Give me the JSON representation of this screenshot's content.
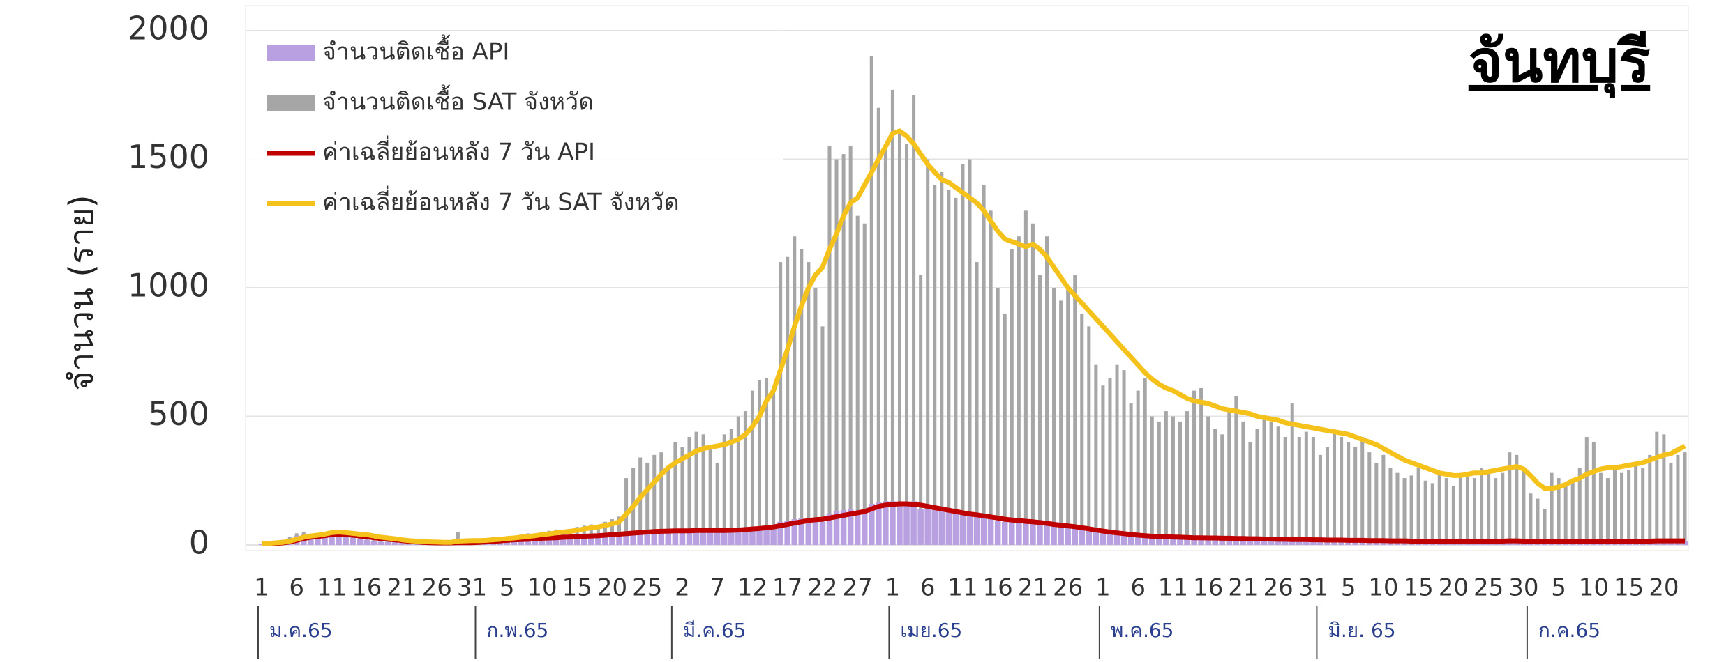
{
  "chart_data": {
    "type": "combo",
    "title": "จันทบุรี",
    "y_label": "จำนวน (ราย)",
    "ylim": [
      0,
      2000
    ],
    "yticks": [
      0,
      500,
      1000,
      1500,
      2000
    ],
    "grid": true,
    "legend": "upper left",
    "categories": [
      "1",
      null,
      null,
      null,
      null,
      "6",
      null,
      null,
      null,
      null,
      "11",
      null,
      null,
      null,
      null,
      "16",
      null,
      null,
      null,
      null,
      "21",
      null,
      null,
      null,
      null,
      "26",
      null,
      null,
      null,
      null,
      "31",
      null,
      null,
      null,
      null,
      "5",
      null,
      null,
      null,
      null,
      "10",
      null,
      null,
      null,
      null,
      "15",
      null,
      null,
      null,
      null,
      "20",
      null,
      null,
      null,
      null,
      "25",
      null,
      null,
      null,
      null,
      "2",
      null,
      null,
      null,
      null,
      "7",
      null,
      null,
      null,
      null,
      "12",
      null,
      null,
      null,
      null,
      "17",
      null,
      null,
      null,
      null,
      "22",
      null,
      null,
      null,
      null,
      "27",
      null,
      null,
      null,
      null,
      "1",
      null,
      null,
      null,
      null,
      "6",
      null,
      null,
      null,
      null,
      "11",
      null,
      null,
      null,
      null,
      "16",
      null,
      null,
      null,
      null,
      "21",
      null,
      null,
      null,
      null,
      "26",
      null,
      null,
      null,
      null,
      "1",
      null,
      null,
      null,
      null,
      "6",
      null,
      null,
      null,
      null,
      "11",
      null,
      null,
      null,
      null,
      "16",
      null,
      null,
      null,
      null,
      "21",
      null,
      null,
      null,
      null,
      "26",
      null,
      null,
      null,
      null,
      "31",
      null,
      null,
      null,
      null,
      "5",
      null,
      null,
      null,
      null,
      "10",
      null,
      null,
      null,
      null,
      "15",
      null,
      null,
      null,
      null,
      "20",
      null,
      null,
      null,
      null,
      "25",
      null,
      null,
      null,
      null,
      "30",
      null,
      null,
      null,
      null,
      "5",
      null,
      null,
      null,
      null,
      "10",
      null,
      null,
      null,
      null,
      "15",
      null,
      null,
      null,
      null,
      "20",
      null,
      null,
      null
    ],
    "x_groups": [
      {
        "label": "ม.ค.65",
        "span": 31
      },
      {
        "label": "ก.พ.65",
        "span": 28
      },
      {
        "label": "มี.ค.65",
        "span": 31
      },
      {
        "label": "เมย.65",
        "span": 30
      },
      {
        "label": "พ.ค.65",
        "span": 31
      },
      {
        "label": "มิ.ย. 65",
        "span": 30
      },
      {
        "label": "ก.ค.65",
        "span": 23
      }
    ],
    "series": [
      {
        "name": "จำนวนติดเชื้อ SAT จังหวัด",
        "type": "bar",
        "color": "#a6a6a6",
        "values": [
          5,
          8,
          10,
          20,
          30,
          45,
          50,
          40,
          35,
          45,
          55,
          50,
          40,
          35,
          30,
          25,
          20,
          15,
          15,
          12,
          10,
          10,
          8,
          10,
          12,
          8,
          10,
          10,
          50,
          15,
          10,
          20,
          25,
          30,
          25,
          30,
          35,
          40,
          45,
          40,
          50,
          55,
          60,
          50,
          60,
          70,
          75,
          80,
          70,
          90,
          100,
          110,
          260,
          300,
          340,
          320,
          350,
          360,
          300,
          400,
          380,
          420,
          440,
          430,
          380,
          320,
          430,
          450,
          500,
          520,
          600,
          640,
          650,
          600,
          1100,
          1120,
          1200,
          1150,
          1100,
          1000,
          850,
          1550,
          1500,
          1520,
          1550,
          1280,
          1250,
          1900,
          1700,
          1550,
          1770,
          1600,
          1560,
          1750,
          1050,
          1500,
          1400,
          1450,
          1380,
          1350,
          1480,
          1500,
          1100,
          1400,
          1300,
          1000,
          900,
          1150,
          1200,
          1300,
          1250,
          1050,
          1200,
          1000,
          950,
          1000,
          1050,
          900,
          850,
          700,
          620,
          650,
          700,
          680,
          550,
          600,
          650,
          500,
          480,
          520,
          500,
          480,
          520,
          600,
          610,
          500,
          450,
          430,
          520,
          580,
          480,
          400,
          450,
          500,
          480,
          460,
          420,
          550,
          420,
          440,
          420,
          350,
          380,
          440,
          420,
          400,
          380,
          420,
          360,
          320,
          350,
          300,
          280,
          260,
          270,
          300,
          250,
          240,
          280,
          260,
          230,
          280,
          270,
          260,
          300,
          290,
          260,
          280,
          360,
          350,
          300,
          200,
          180,
          140,
          280,
          260,
          240,
          250,
          300,
          420,
          400,
          280,
          260,
          300,
          280,
          290,
          320,
          300,
          350,
          440,
          430,
          320,
          350,
          360
        ]
      },
      {
        "name": "จำนวนติดเชื้อ API",
        "type": "bar",
        "color": "#b9a0e0",
        "values": [
          4,
          6,
          8,
          16,
          24,
          36,
          40,
          32,
          28,
          36,
          44,
          40,
          32,
          28,
          24,
          20,
          16,
          12,
          12,
          10,
          8,
          8,
          6,
          8,
          10,
          6,
          8,
          8,
          10,
          12,
          8,
          15,
          18,
          20,
          18,
          20,
          22,
          25,
          28,
          25,
          30,
          32,
          35,
          30,
          32,
          35,
          38,
          40,
          35,
          42,
          45,
          48,
          50,
          52,
          55,
          50,
          55,
          58,
          55,
          55,
          52,
          58,
          60,
          58,
          55,
          50,
          58,
          60,
          65,
          68,
          70,
          72,
          75,
          70,
          90,
          95,
          100,
          105,
          100,
          95,
          90,
          120,
          130,
          135,
          140,
          130,
          135,
          160,
          165,
          170,
          170,
          165,
          160,
          170,
          140,
          150,
          140,
          135,
          130,
          120,
          125,
          120,
          110,
          115,
          105,
          95,
          90,
          95,
          100,
          95,
          90,
          80,
          85,
          75,
          70,
          72,
          70,
          65,
          60,
          55,
          45,
          45,
          42,
          40,
          38,
          36,
          35,
          33,
          32,
          30,
          30,
          28,
          28,
          30,
          30,
          28,
          26,
          25,
          26,
          28,
          25,
          22,
          22,
          24,
          22,
          22,
          20,
          22,
          20,
          20,
          20,
          18,
          18,
          20,
          20,
          18,
          18,
          20,
          18,
          16,
          16,
          15,
          15,
          14,
          15,
          16,
          14,
          14,
          15,
          14,
          13,
          14,
          14,
          14,
          15,
          15,
          14,
          15,
          18,
          18,
          16,
          12,
          12,
          10,
          14,
          14,
          13,
          13,
          14,
          18,
          18,
          15,
          14,
          15,
          14,
          14,
          15,
          14,
          15,
          18,
          18,
          15,
          15,
          15
        ]
      },
      {
        "name": "ค่าเฉลี่ยย้อนหลัง 7 วัน API",
        "type": "line",
        "color": "#c00000",
        "values": [
          4,
          5,
          6,
          8,
          12,
          18,
          25,
          30,
          33,
          36,
          40,
          42,
          40,
          38,
          35,
          32,
          28,
          25,
          22,
          20,
          17,
          14,
          12,
          10,
          9,
          8,
          8,
          8,
          9,
          9,
          9,
          10,
          12,
          14,
          16,
          18,
          20,
          21,
          22,
          24,
          26,
          27,
          28,
          30,
          31,
          32,
          34,
          35,
          36,
          38,
          40,
          42,
          44,
          46,
          48,
          50,
          52,
          53,
          54,
          55,
          55,
          55,
          56,
          56,
          56,
          56,
          56,
          57,
          58,
          60,
          62,
          64,
          67,
          70,
          75,
          80,
          85,
          90,
          95,
          98,
          100,
          105,
          110,
          115,
          120,
          125,
          130,
          140,
          150,
          155,
          158,
          160,
          160,
          158,
          155,
          150,
          145,
          140,
          135,
          130,
          125,
          120,
          117,
          113,
          109,
          105,
          100,
          97,
          95,
          92,
          90,
          87,
          84,
          80,
          77,
          74,
          71,
          67,
          63,
          58,
          54,
          50,
          47,
          44,
          41,
          38,
          36,
          34,
          33,
          32,
          31,
          30,
          29,
          28,
          28,
          27,
          27,
          26,
          26,
          25,
          25,
          24,
          24,
          23,
          23,
          22,
          22,
          21,
          21,
          21,
          20,
          20,
          19,
          19,
          19,
          18,
          18,
          18,
          17,
          17,
          17,
          16,
          16,
          16,
          15,
          15,
          15,
          15,
          15,
          15,
          14,
          14,
          14,
          14,
          14,
          15,
          15,
          15,
          16,
          16,
          15,
          14,
          13,
          13,
          13,
          13,
          14,
          14,
          14,
          15,
          15,
          15,
          15,
          15,
          15,
          15,
          15,
          15,
          15,
          16,
          16,
          16,
          16,
          16
        ]
      },
      {
        "name": "ค่าเฉลี่ยย้อนหลัง 7 วัน SAT จังหวัด",
        "type": "line",
        "color": "#f5c21b",
        "values": [
          5,
          6,
          8,
          10,
          15,
          22,
          30,
          35,
          38,
          42,
          48,
          50,
          48,
          45,
          42,
          40,
          35,
          30,
          27,
          24,
          20,
          17,
          15,
          13,
          12,
          11,
          10,
          10,
          15,
          16,
          17,
          17,
          18,
          20,
          22,
          25,
          27,
          30,
          33,
          36,
          40,
          43,
          47,
          50,
          53,
          57,
          62,
          66,
          70,
          76,
          82,
          90,
          120,
          150,
          185,
          215,
          245,
          275,
          300,
          320,
          335,
          350,
          365,
          375,
          380,
          385,
          390,
          400,
          410,
          430,
          460,
          500,
          560,
          600,
          680,
          760,
          850,
          930,
          1000,
          1050,
          1080,
          1150,
          1210,
          1280,
          1330,
          1350,
          1400,
          1450,
          1500,
          1550,
          1600,
          1610,
          1590,
          1560,
          1520,
          1480,
          1450,
          1420,
          1410,
          1390,
          1370,
          1350,
          1330,
          1300,
          1260,
          1220,
          1190,
          1180,
          1170,
          1160,
          1170,
          1150,
          1120,
          1080,
          1040,
          1000,
          970,
          940,
          910,
          880,
          850,
          820,
          790,
          760,
          730,
          700,
          670,
          645,
          625,
          610,
          600,
          585,
          570,
          560,
          555,
          550,
          540,
          530,
          525,
          520,
          515,
          510,
          500,
          495,
          490,
          485,
          475,
          470,
          465,
          460,
          455,
          450,
          445,
          440,
          435,
          430,
          420,
          410,
          400,
          390,
          375,
          360,
          345,
          330,
          320,
          310,
          300,
          290,
          280,
          275,
          270,
          270,
          275,
          280,
          280,
          285,
          290,
          295,
          300,
          305,
          295,
          270,
          240,
          220,
          220,
          225,
          235,
          250,
          260,
          275,
          285,
          295,
          300,
          300,
          305,
          310,
          315,
          320,
          330,
          340,
          350,
          355,
          370,
          385
        ]
      }
    ]
  }
}
